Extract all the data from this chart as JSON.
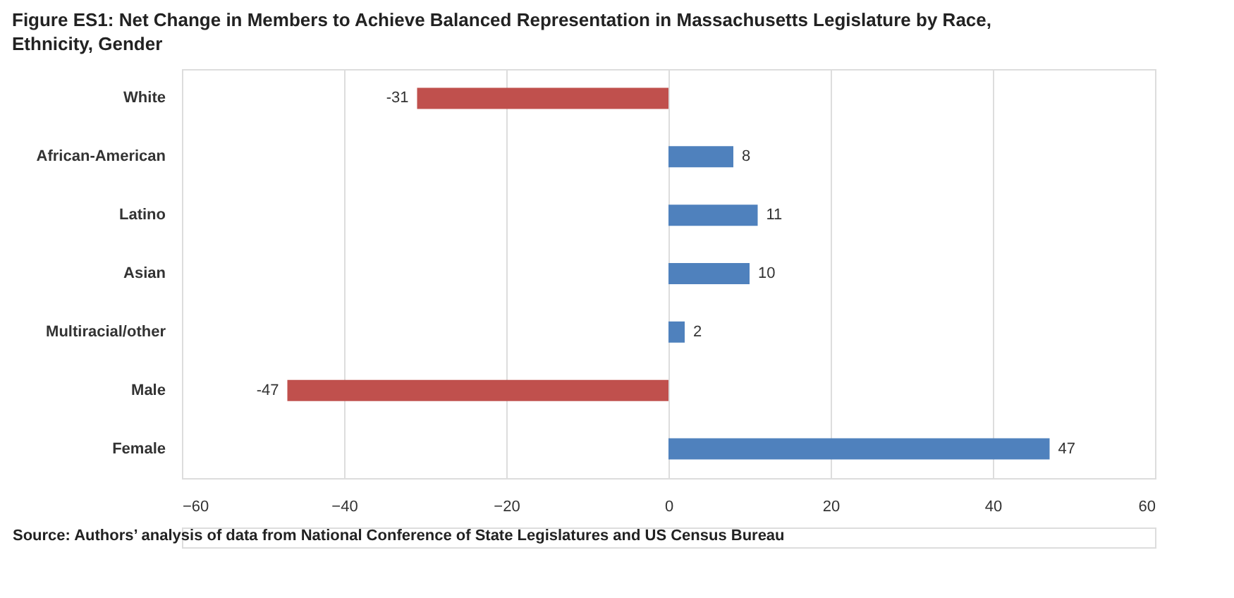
{
  "chart_data": {
    "type": "bar",
    "orientation": "horizontal",
    "title": "Figure ES1: Net Change in Members to Achieve Balanced Representation in Massachusetts Legislature by Race, Ethnicity, Gender",
    "categories": [
      "White",
      "African-American",
      "Latino",
      "Asian",
      "Multiracial/other",
      "Male",
      "Female"
    ],
    "values": [
      -31,
      8,
      11,
      10,
      2,
      -47,
      47
    ],
    "colors": [
      "#c0504d",
      "#4f81bd",
      "#4f81bd",
      "#4f81bd",
      "#4f81bd",
      "#c0504d",
      "#4f81bd"
    ],
    "xlim": [
      -60,
      60
    ],
    "xticks": [
      -60,
      -40,
      -20,
      0,
      20,
      40,
      60
    ],
    "grid": "x",
    "data_labels": true,
    "annotations": [
      "Source: Authors’ analysis of data from National Conference of State Legislatures and US Census Bureau"
    ]
  }
}
